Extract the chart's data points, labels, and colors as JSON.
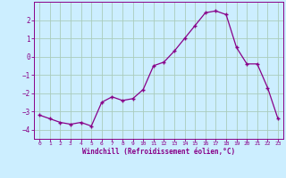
{
  "x": [
    0,
    1,
    2,
    3,
    4,
    5,
    6,
    7,
    8,
    9,
    10,
    11,
    12,
    13,
    14,
    15,
    16,
    17,
    18,
    19,
    20,
    21,
    22,
    23
  ],
  "y": [
    -3.2,
    -3.4,
    -3.6,
    -3.7,
    -3.6,
    -3.8,
    -2.5,
    -2.2,
    -2.4,
    -2.3,
    -1.8,
    -0.5,
    -0.3,
    0.3,
    1.0,
    1.7,
    2.4,
    2.5,
    2.3,
    0.5,
    -0.4,
    -0.4,
    -1.7,
    -3.4
  ],
  "xlabel": "Windchill (Refroidissement éolien,°C)",
  "ylim": [
    -4.5,
    3.0
  ],
  "xlim": [
    -0.5,
    23.5
  ],
  "line_color": "#880088",
  "marker_color": "#880088",
  "bg_color": "#cceeff",
  "grid_color": "#aaccbb",
  "tick_label_color": "#880088",
  "xlabel_color": "#880088",
  "yticks": [
    -4,
    -3,
    -2,
    -1,
    0,
    1,
    2
  ],
  "xticks": [
    0,
    1,
    2,
    3,
    4,
    5,
    6,
    7,
    8,
    9,
    10,
    11,
    12,
    13,
    14,
    15,
    16,
    17,
    18,
    19,
    20,
    21,
    22,
    23
  ]
}
